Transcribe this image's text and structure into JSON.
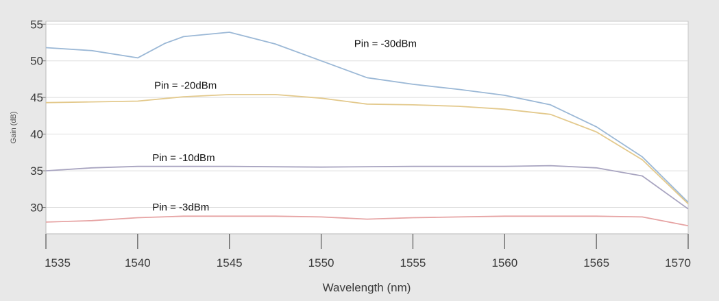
{
  "chart_data": {
    "type": "line",
    "title": "",
    "xlabel": "Wavelength (nm)",
    "ylabel": "Gain (dB)",
    "xlim": [
      1535,
      1570
    ],
    "ylim": [
      25,
      55
    ],
    "x_ticks": [
      1535,
      1540,
      1545,
      1550,
      1555,
      1560,
      1565,
      1570
    ],
    "y_ticks": [
      30,
      35,
      40,
      45,
      50,
      55
    ],
    "grid": "horizontal",
    "legend": "none",
    "series": [
      {
        "name": "Pin = -30dBm",
        "color": "#9bb8d6",
        "points": [
          [
            1535,
            51.8
          ],
          [
            1537.5,
            51.4
          ],
          [
            1540,
            50.4
          ],
          [
            1541.5,
            52.4
          ],
          [
            1542.5,
            53.3
          ],
          [
            1545,
            53.9
          ],
          [
            1547.5,
            52.3
          ],
          [
            1550,
            50.0
          ],
          [
            1552.5,
            47.7
          ],
          [
            1555,
            46.8
          ],
          [
            1557.5,
            46.1
          ],
          [
            1560,
            45.3
          ],
          [
            1562.5,
            44.0
          ],
          [
            1565,
            41.0
          ],
          [
            1567.5,
            36.9
          ],
          [
            1570,
            30.7
          ]
        ]
      },
      {
        "name": "Pin = -20dBm",
        "color": "#e3c98c",
        "points": [
          [
            1535,
            44.3
          ],
          [
            1537.5,
            44.4
          ],
          [
            1540,
            44.5
          ],
          [
            1542.5,
            45.1
          ],
          [
            1545,
            45.4
          ],
          [
            1547.5,
            45.4
          ],
          [
            1550,
            44.9
          ],
          [
            1552.5,
            44.1
          ],
          [
            1555,
            44.0
          ],
          [
            1557.5,
            43.8
          ],
          [
            1560,
            43.4
          ],
          [
            1562.5,
            42.7
          ],
          [
            1565,
            40.3
          ],
          [
            1567.5,
            36.5
          ],
          [
            1570,
            30.5
          ]
        ]
      },
      {
        "name": "Pin = -10dBm",
        "color": "#a8a4c0",
        "points": [
          [
            1535,
            35.0
          ],
          [
            1537.5,
            35.4
          ],
          [
            1540,
            35.6
          ],
          [
            1545,
            35.6
          ],
          [
            1550,
            35.5
          ],
          [
            1555,
            35.6
          ],
          [
            1560,
            35.6
          ],
          [
            1562.5,
            35.7
          ],
          [
            1565,
            35.4
          ],
          [
            1567.5,
            34.3
          ],
          [
            1570,
            29.8
          ]
        ]
      },
      {
        "name": "Pin = -3dBm",
        "color": "#e6a3a3",
        "points": [
          [
            1535,
            28.0
          ],
          [
            1537.5,
            28.2
          ],
          [
            1540,
            28.6
          ],
          [
            1542.5,
            28.8
          ],
          [
            1545,
            28.8
          ],
          [
            1547.5,
            28.8
          ],
          [
            1550,
            28.7
          ],
          [
            1552.5,
            28.4
          ],
          [
            1555,
            28.6
          ],
          [
            1557.5,
            28.7
          ],
          [
            1560,
            28.8
          ],
          [
            1562.5,
            28.8
          ],
          [
            1565,
            28.8
          ],
          [
            1567.5,
            28.7
          ],
          [
            1570,
            27.5
          ]
        ]
      }
    ],
    "annotations": [
      {
        "text": "Pin = -30dBm",
        "x": 1551.8,
        "y": 51.9
      },
      {
        "text": "Pin = -20dBm",
        "x": 1540.9,
        "y": 46.2
      },
      {
        "text": "Pin = -10dBm",
        "x": 1540.8,
        "y": 36.3
      },
      {
        "text": "Pin = -3dBm",
        "x": 1540.8,
        "y": 29.6
      }
    ]
  }
}
